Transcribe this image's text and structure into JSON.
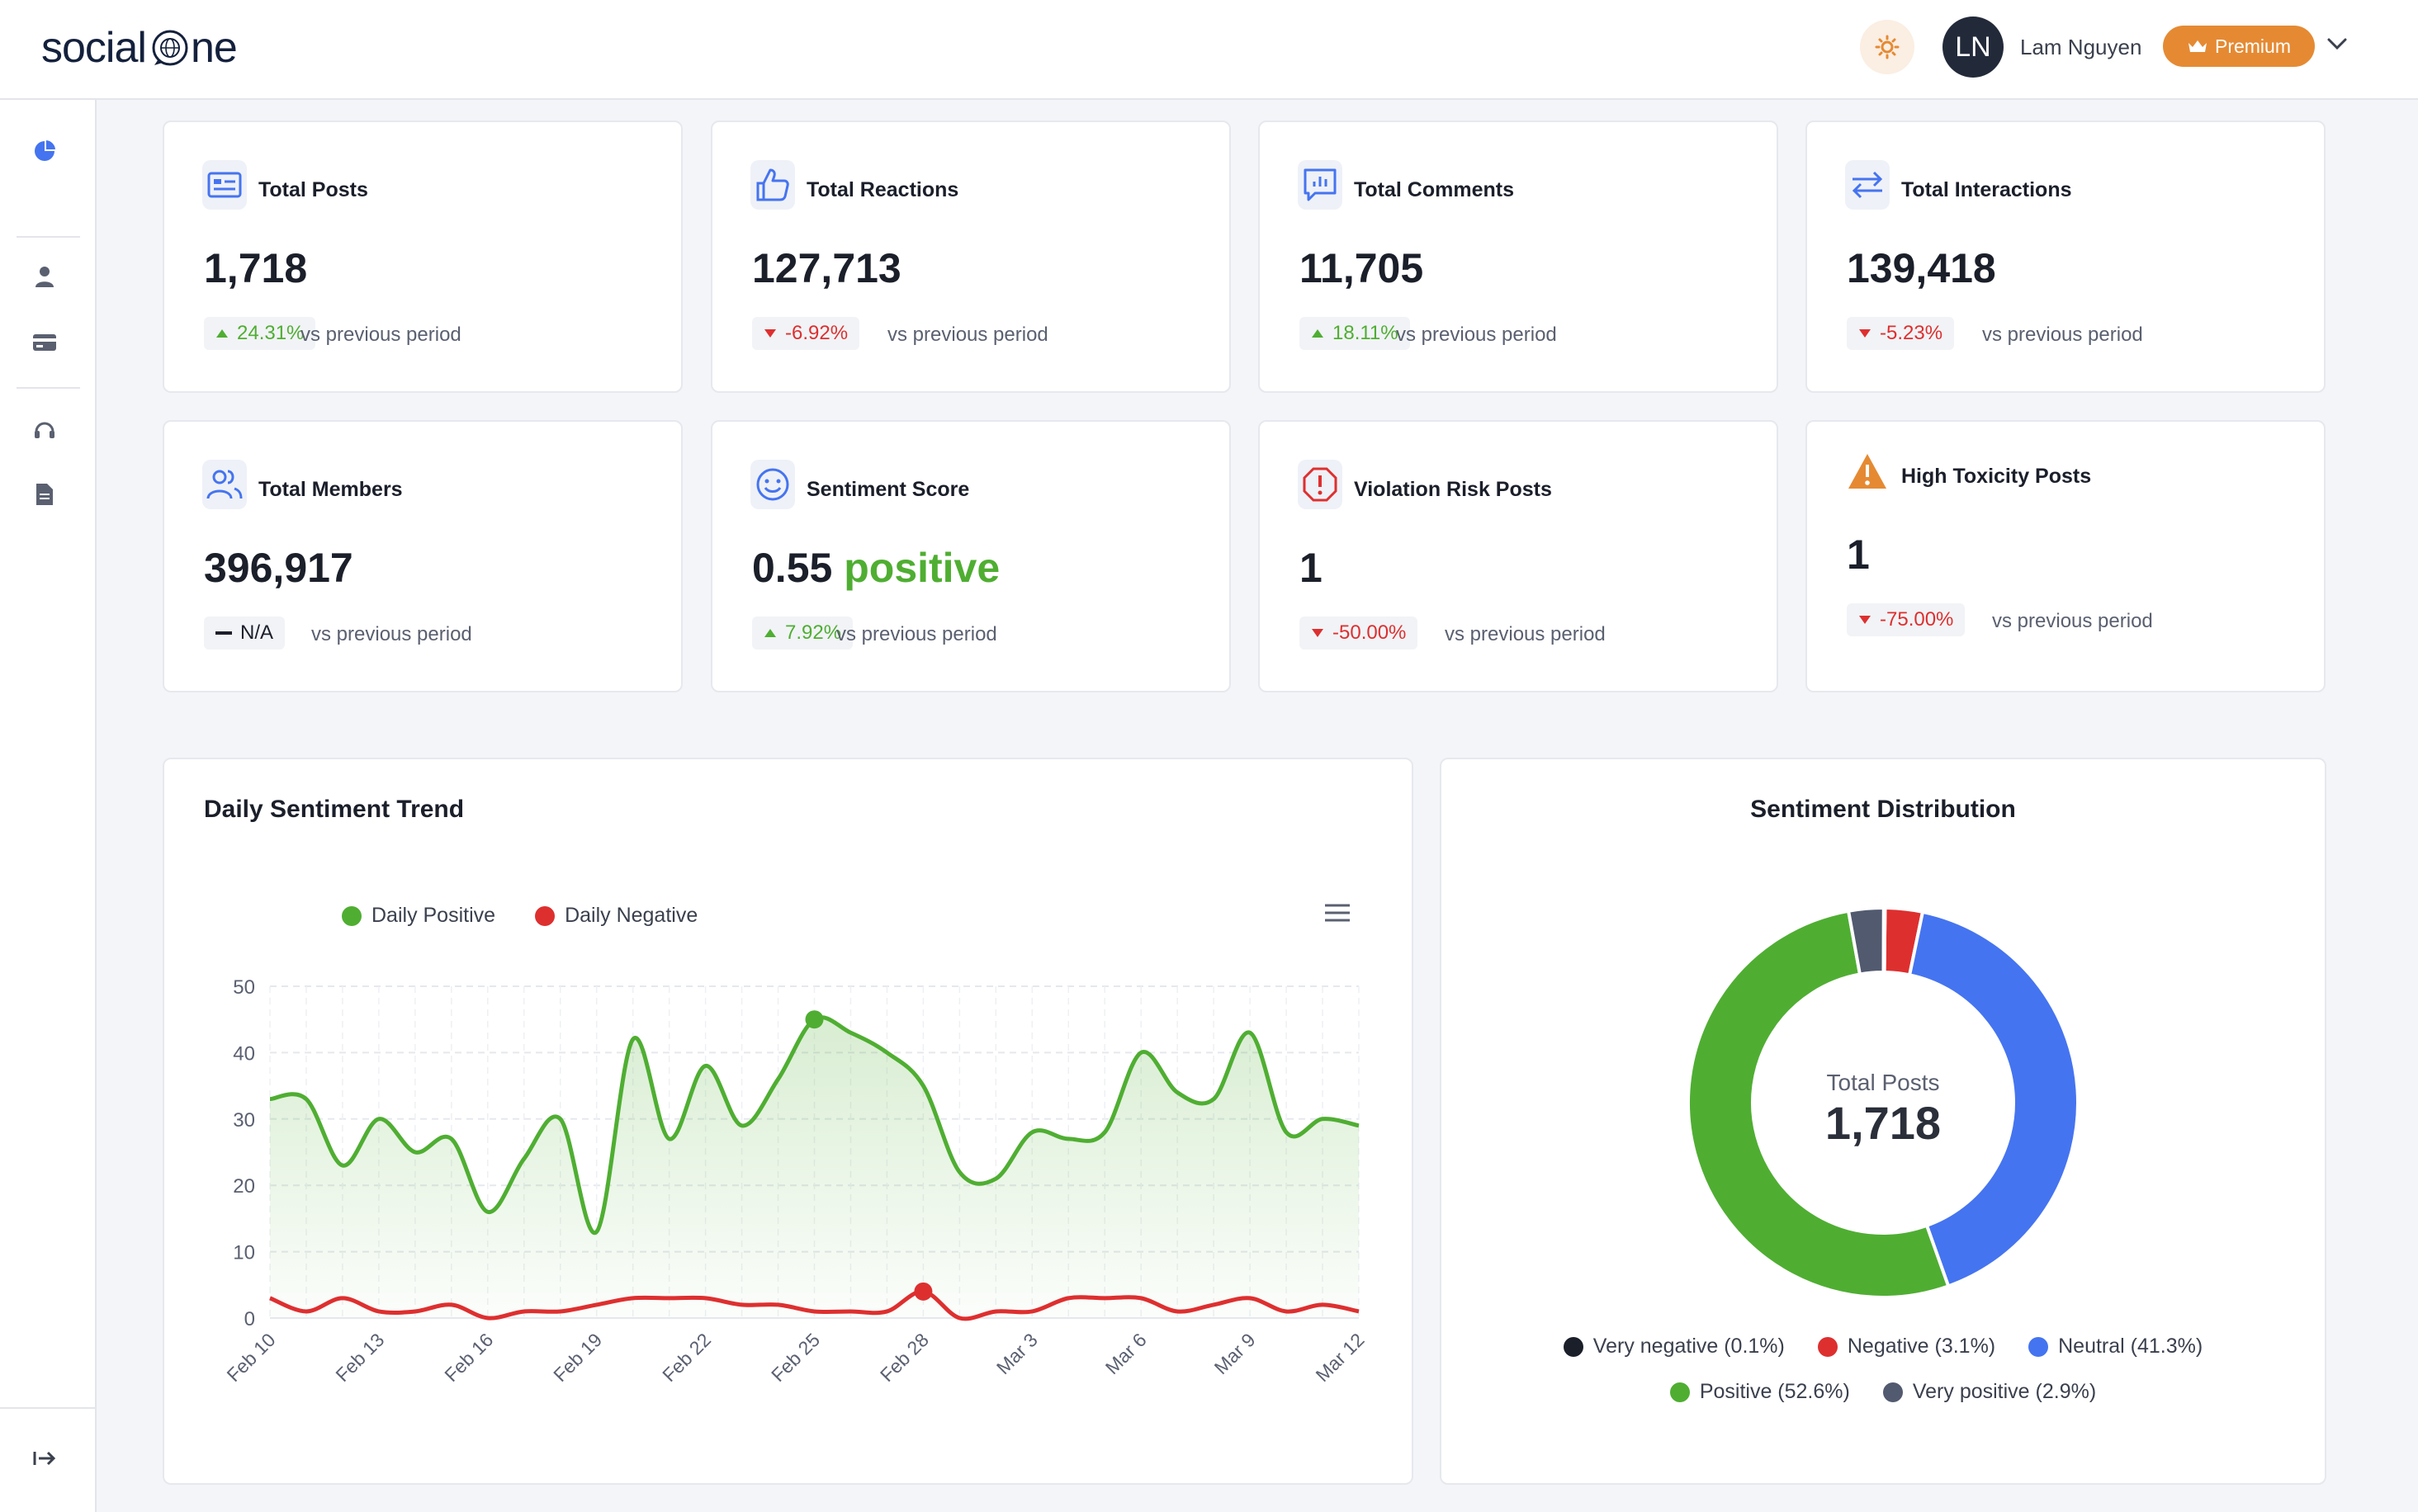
{
  "header": {
    "logo_left": "social",
    "logo_right": "ne",
    "user_initials": "LN",
    "user_name": "Lam Nguyen",
    "premium_label": "Premium"
  },
  "colors": {
    "positive": "#4fae32",
    "negative": "#de2f2f",
    "neutral": "#4574f0",
    "very_negative": "#1b1f2a",
    "very_positive": "#525a70",
    "premium": "#e58a33"
  },
  "stats": [
    {
      "title": "Total Posts",
      "value": "1,718",
      "delta": "24.31%",
      "dir": "up",
      "vs": "vs previous period",
      "icon": "posts-icon"
    },
    {
      "title": "Total Reactions",
      "value": "127,713",
      "delta": "-6.92%",
      "dir": "down",
      "vs": "vs previous period",
      "icon": "thumbs-up-icon"
    },
    {
      "title": "Total Comments",
      "value": "11,705",
      "delta": "18.11%",
      "dir": "up",
      "vs": "vs previous period",
      "icon": "comment-icon"
    },
    {
      "title": "Total Interactions",
      "value": "139,418",
      "delta": "-5.23%",
      "dir": "down",
      "vs": "vs previous period",
      "icon": "swap-icon"
    },
    {
      "title": "Total Members",
      "value": "396,917",
      "delta": "N/A",
      "dir": "na",
      "vs": "vs previous period",
      "icon": "members-icon"
    },
    {
      "title": "Sentiment Score",
      "value": "0.55",
      "value_suffix": "positive",
      "delta": "7.92%",
      "dir": "up",
      "vs": "vs previous period",
      "icon": "smile-icon"
    },
    {
      "title": "Violation Risk Posts",
      "value": "1",
      "delta": "-50.00%",
      "dir": "down",
      "vs": "vs previous period",
      "icon": "alert-octagon-icon"
    },
    {
      "title": "High Toxicity Posts",
      "value": "1",
      "delta": "-75.00%",
      "dir": "down",
      "vs": "vs previous period",
      "icon": "warning-triangle-icon"
    }
  ],
  "chart_data": [
    {
      "type": "line",
      "title": "Daily Sentiment Trend",
      "x": [
        "Feb 10",
        "Feb 11",
        "Feb 12",
        "Feb 13",
        "Feb 14",
        "Feb 15",
        "Feb 16",
        "Feb 17",
        "Feb 18",
        "Feb 19",
        "Feb 20",
        "Feb 21",
        "Feb 22",
        "Feb 23",
        "Feb 24",
        "Feb 25",
        "Feb 26",
        "Feb 27",
        "Feb 28",
        "Mar 1",
        "Mar 2",
        "Mar 3",
        "Mar 4",
        "Mar 5",
        "Mar 6",
        "Mar 7",
        "Mar 8",
        "Mar 9",
        "Mar 10",
        "Mar 11",
        "Mar 12"
      ],
      "tick_labels": [
        "Feb 10",
        "Feb 13",
        "Feb 16",
        "Feb 19",
        "Feb 22",
        "Feb 25",
        "Feb 28",
        "Mar 3",
        "Mar 6",
        "Mar 9",
        "Mar 12"
      ],
      "series": [
        {
          "name": "Daily Positive",
          "values": [
            33,
            33,
            23,
            30,
            25,
            27,
            16,
            24,
            30,
            13,
            42,
            27,
            38,
            29,
            36,
            45,
            43,
            40,
            35,
            22,
            21,
            28,
            27,
            28,
            40,
            34,
            33,
            43,
            28,
            30,
            29
          ]
        },
        {
          "name": "Daily Negative",
          "values": [
            3,
            1,
            3,
            1,
            1,
            2,
            0,
            1,
            1,
            2,
            3,
            3,
            3,
            2,
            2,
            1,
            1,
            1,
            4,
            0,
            1,
            1,
            3,
            3,
            3,
            1,
            2,
            3,
            1,
            2,
            1
          ]
        }
      ],
      "ylim": [
        0,
        50
      ],
      "yticks": [
        "0",
        "10",
        "20",
        "30",
        "40",
        "50"
      ],
      "legend": "top-left"
    },
    {
      "type": "pie",
      "title": "Sentiment Distribution",
      "center_label": "Total Posts",
      "center_value": "1,718",
      "slices": [
        {
          "name": "Very negative",
          "label": "Very negative (0.1%)",
          "value": 0.1
        },
        {
          "name": "Negative",
          "label": "Negative (3.1%)",
          "value": 3.1
        },
        {
          "name": "Neutral",
          "label": "Neutral (41.3%)",
          "value": 41.3
        },
        {
          "name": "Positive",
          "label": "Positive (52.6%)",
          "value": 52.6
        },
        {
          "name": "Very positive",
          "label": "Very positive (2.9%)",
          "value": 2.9
        }
      ]
    }
  ]
}
